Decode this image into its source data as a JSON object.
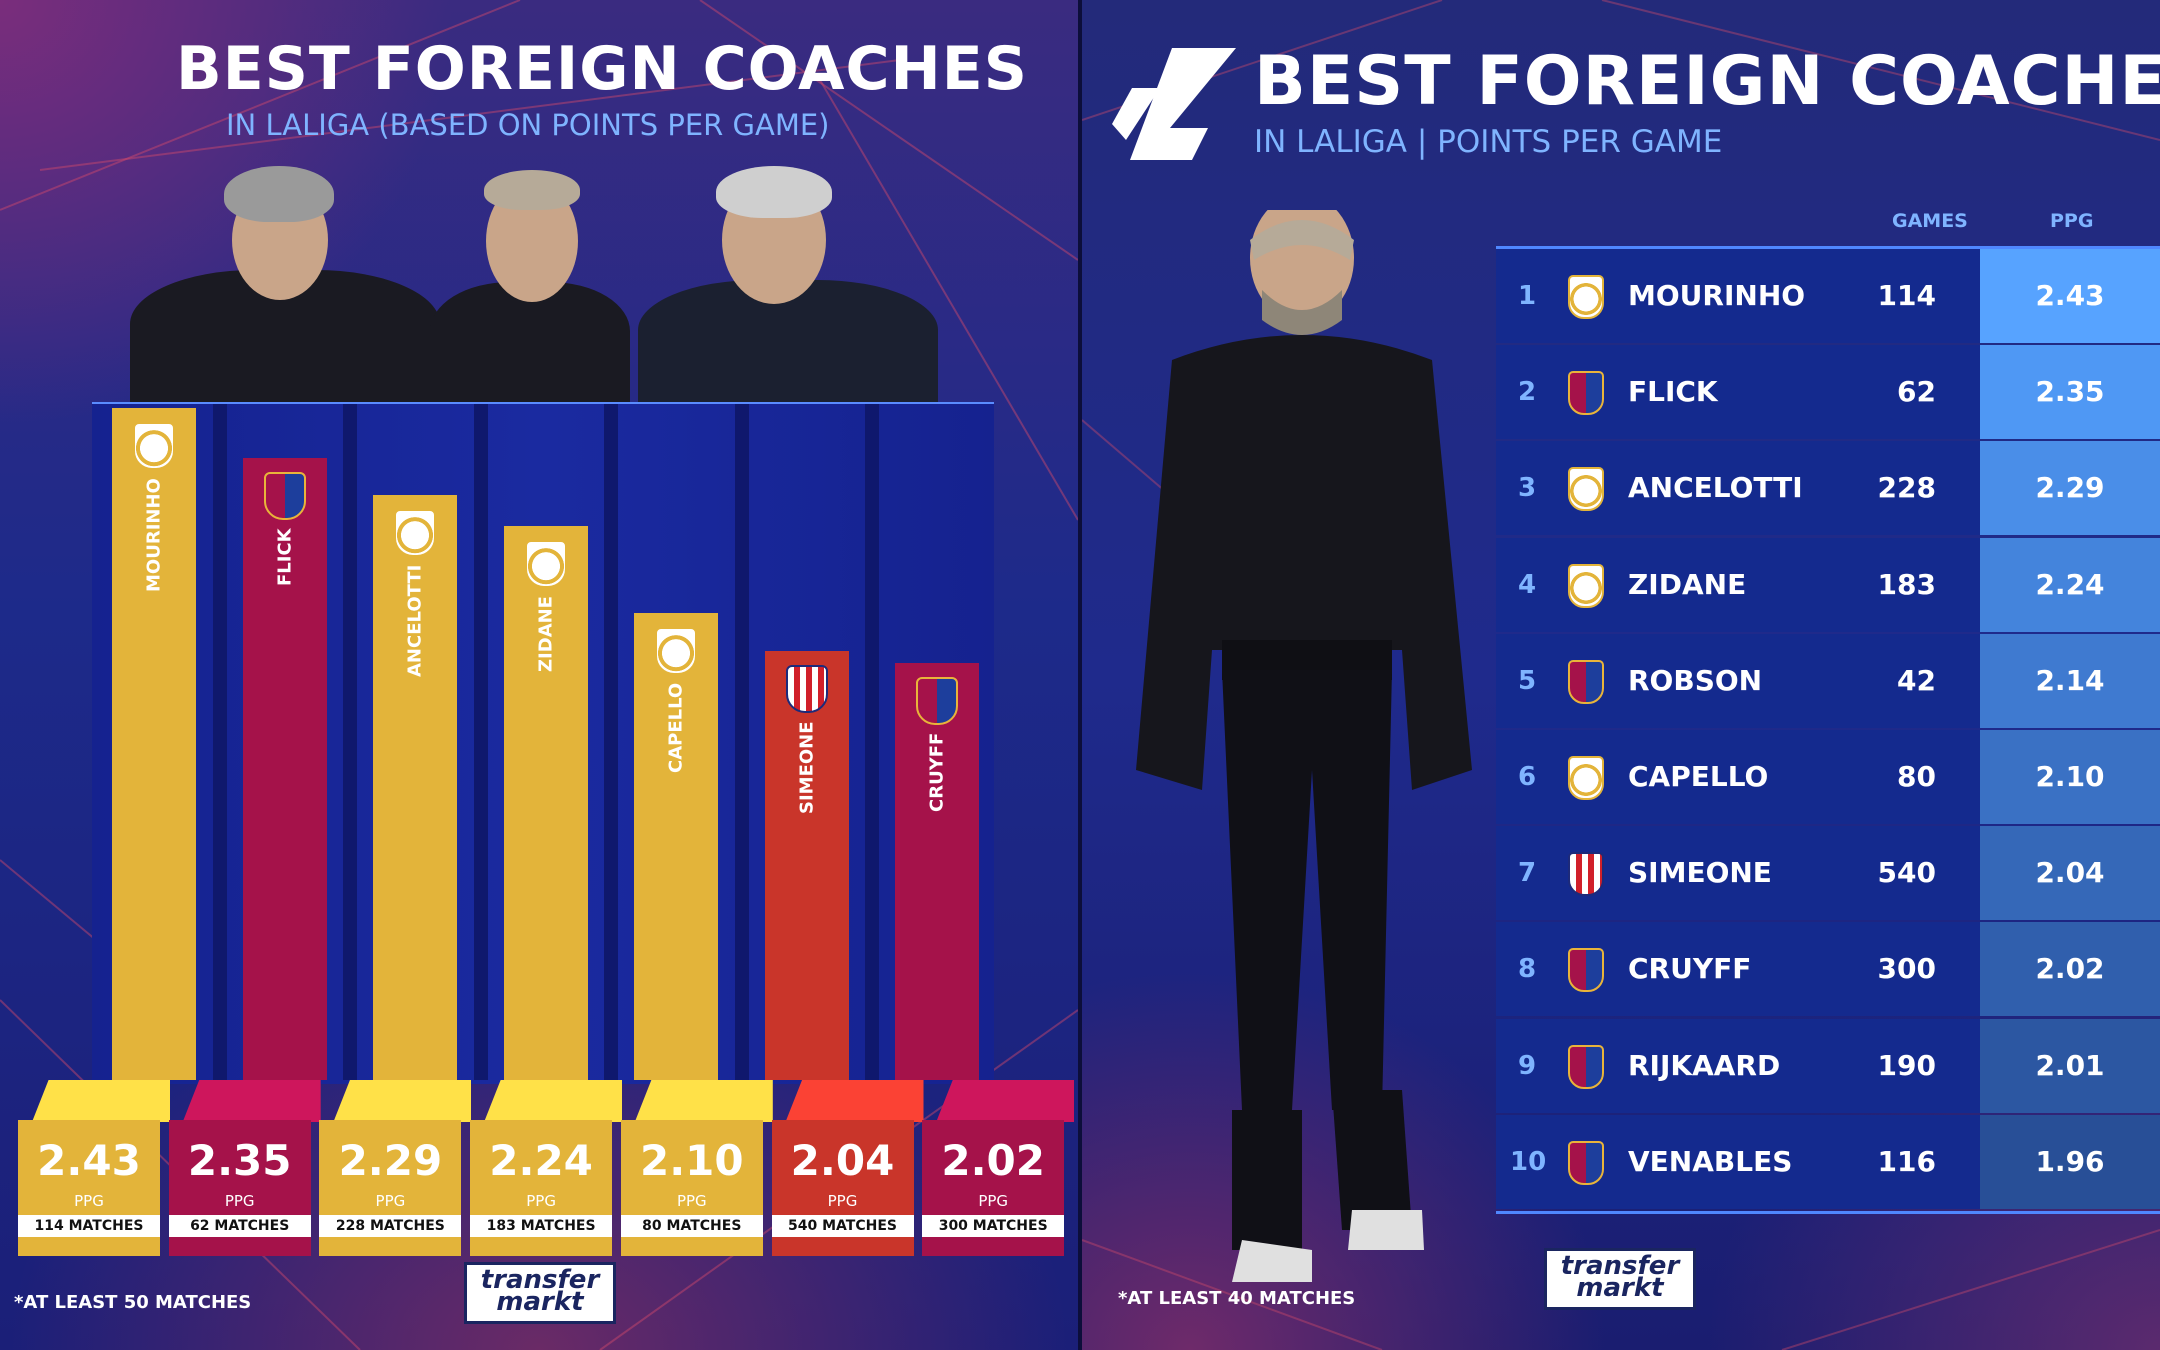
{
  "colors": {
    "madrid_gold": "#e3b43a",
    "barca_maroon": "#a5124a",
    "atletico_red": "#c9352a",
    "accent_blue": "#7fb4ff",
    "row_blue": "#142a8e"
  },
  "left": {
    "title": "BEST FOREIGN COACHES",
    "subtitle": "IN LALIGA (BASED ON POINTS PER GAME)",
    "footnote": "*AT LEAST 50 MATCHES",
    "logo_line1": "transfer",
    "logo_line2": "markt"
  },
  "right": {
    "title": "BEST FOREIGN COACHES",
    "subtitle": "IN LALIGA | POINTS PER GAME",
    "footnote": "*AT LEAST 40 MATCHES",
    "logo_line1": "transfer",
    "logo_line2": "markt",
    "col_games": "GAMES",
    "col_ppg": "PPG"
  },
  "chart_data": [
    {
      "type": "bar",
      "title": "BEST FOREIGN COACHES",
      "subtitle": "IN LALIGA (BASED ON POINTS PER GAME)",
      "categories": [
        "MOURINHO",
        "FLICK",
        "ANCELOTTI",
        "ZIDANE",
        "CAPELLO",
        "SIMEONE",
        "CRUYFF"
      ],
      "values": [
        2.43,
        2.35,
        2.29,
        2.24,
        2.1,
        2.04,
        2.02
      ],
      "value_labels": [
        "2.43",
        "2.35",
        "2.29",
        "2.24",
        "2.10",
        "2.04",
        "2.02"
      ],
      "unit": "PPG",
      "matches": [
        "114 MATCHES",
        "62 MATCHES",
        "228 MATCHES",
        "183 MATCHES",
        "80 MATCHES",
        "540 MATCHES",
        "300 MATCHES"
      ],
      "clubs": [
        "real-madrid",
        "barcelona",
        "real-madrid",
        "real-madrid",
        "real-madrid",
        "atletico-madrid",
        "barcelona"
      ],
      "bar_colors": [
        "#e3b43a",
        "#a5124a",
        "#e3b43a",
        "#e3b43a",
        "#e3b43a",
        "#c9352a",
        "#a5124a"
      ],
      "note": "*AT LEAST 50 MATCHES"
    },
    {
      "type": "table",
      "title": "BEST FOREIGN COACHES",
      "subtitle": "IN LALIGA | POINTS PER GAME",
      "columns": [
        "GAMES",
        "PPG"
      ],
      "rows": [
        {
          "rank": "1",
          "club": "real-madrid",
          "name": "MOURINHO",
          "games": "114",
          "ppg": "2.43"
        },
        {
          "rank": "2",
          "club": "barcelona",
          "name": "FLICK",
          "games": "62",
          "ppg": "2.35"
        },
        {
          "rank": "3",
          "club": "real-madrid",
          "name": "ANCELOTTI",
          "games": "228",
          "ppg": "2.29"
        },
        {
          "rank": "4",
          "club": "real-madrid",
          "name": "ZIDANE",
          "games": "183",
          "ppg": "2.24"
        },
        {
          "rank": "5",
          "club": "barcelona",
          "name": "ROBSON",
          "games": "42",
          "ppg": "2.14"
        },
        {
          "rank": "6",
          "club": "real-madrid",
          "name": "CAPELLO",
          "games": "80",
          "ppg": "2.10"
        },
        {
          "rank": "7",
          "club": "atletico-madrid",
          "name": "SIMEONE",
          "games": "540",
          "ppg": "2.04"
        },
        {
          "rank": "8",
          "club": "barcelona",
          "name": "CRUYFF",
          "games": "300",
          "ppg": "2.02"
        },
        {
          "rank": "9",
          "club": "barcelona",
          "name": "RIJKAARD",
          "games": "190",
          "ppg": "2.01"
        },
        {
          "rank": "10",
          "club": "barcelona",
          "name": "VENABLES",
          "games": "116",
          "ppg": "1.96"
        }
      ],
      "note": "*AT LEAST 40 MATCHES"
    }
  ]
}
